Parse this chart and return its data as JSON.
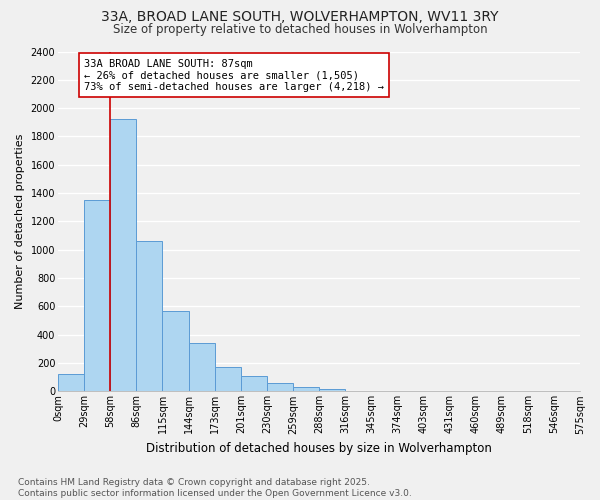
{
  "title": "33A, BROAD LANE SOUTH, WOLVERHAMPTON, WV11 3RY",
  "subtitle": "Size of property relative to detached houses in Wolverhampton",
  "xlabel": "Distribution of detached houses by size in Wolverhampton",
  "ylabel": "Number of detached properties",
  "bar_values": [
    125,
    1350,
    1920,
    1060,
    570,
    340,
    170,
    110,
    60,
    30,
    15,
    0,
    0,
    0,
    0,
    0,
    0,
    0,
    0,
    0
  ],
  "bar_labels": [
    "0sqm",
    "29sqm",
    "58sqm",
    "86sqm",
    "115sqm",
    "144sqm",
    "173sqm",
    "201sqm",
    "230sqm",
    "259sqm",
    "288sqm",
    "316sqm",
    "345sqm",
    "374sqm",
    "403sqm",
    "431sqm",
    "460sqm",
    "489sqm",
    "518sqm",
    "546sqm",
    "575sqm"
  ],
  "bar_color": "#aed6f1",
  "bar_edge_color": "#5b9bd5",
  "vline_color": "#cc0000",
  "vline_x": 2,
  "annotation_title": "33A BROAD LANE SOUTH: 87sqm",
  "annotation_line1": "← 26% of detached houses are smaller (1,505)",
  "annotation_line2": "73% of semi-detached houses are larger (4,218) →",
  "annotation_box_facecolor": "#ffffff",
  "annotation_box_edgecolor": "#cc0000",
  "ylim": [
    0,
    2400
  ],
  "yticks": [
    0,
    200,
    400,
    600,
    800,
    1000,
    1200,
    1400,
    1600,
    1800,
    2000,
    2200,
    2400
  ],
  "footnote1": "Contains HM Land Registry data © Crown copyright and database right 2025.",
  "footnote2": "Contains public sector information licensed under the Open Government Licence v3.0.",
  "bg_color": "#f0f0f0",
  "grid_color": "#ffffff",
  "title_fontsize": 10,
  "subtitle_fontsize": 8.5,
  "xlabel_fontsize": 8.5,
  "ylabel_fontsize": 8,
  "tick_fontsize": 7,
  "annotation_fontsize": 7.5,
  "footnote_fontsize": 6.5
}
